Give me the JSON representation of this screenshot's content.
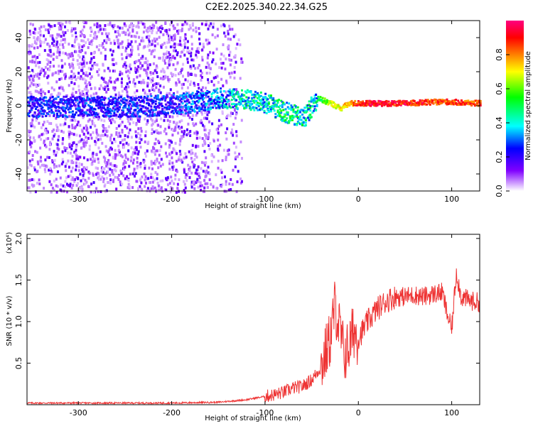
{
  "title": "C2E2.2025.340.22.34.G25",
  "chart_data": [
    {
      "type": "heatmap",
      "xlabel": "Height of straight line (km)",
      "ylabel": "Frequency (Hz)",
      "xlim": [
        -355,
        130
      ],
      "ylim": [
        -50,
        50
      ],
      "xticks": [
        -300,
        -200,
        -100,
        0,
        100
      ],
      "yticks": [
        -40,
        -20,
        0,
        20,
        40
      ],
      "colorbar": {
        "label": "Normalized spectral amplitude",
        "range": [
          0,
          1
        ],
        "ticks": [
          "0.0",
          "0.2",
          "0.4",
          "0.6",
          "0.8"
        ],
        "colors": [
          "#ffffff",
          "#8000ff",
          "#0000ff",
          "#00ffff",
          "#00ff00",
          "#ffff00",
          "#ff8000",
          "#ff0000",
          "#ff0080"
        ]
      },
      "series": [
        {
          "x": -340,
          "y": 0,
          "value": 0.3
        },
        {
          "x": -300,
          "y": 0,
          "value": 0.3
        },
        {
          "x": -250,
          "y": 0,
          "value": 0.3
        },
        {
          "x": -200,
          "y": 1,
          "value": 0.3
        },
        {
          "x": -150,
          "y": 5,
          "value": 0.4
        },
        {
          "x": -120,
          "y": 4,
          "value": 0.5
        },
        {
          "x": -100,
          "y": 2,
          "value": 0.5
        },
        {
          "x": -80,
          "y": -3,
          "value": 0.55
        },
        {
          "x": -60,
          "y": -7,
          "value": 0.5
        },
        {
          "x": -45,
          "y": 5,
          "value": 0.5
        },
        {
          "x": -30,
          "y": 2,
          "value": 0.7
        },
        {
          "x": -20,
          "y": -1,
          "value": 0.75
        },
        {
          "x": -10,
          "y": 2,
          "value": 0.8
        },
        {
          "x": 0,
          "y": 2,
          "value": 0.95
        },
        {
          "x": 50,
          "y": 2,
          "value": 0.95
        },
        {
          "x": 90,
          "y": 3,
          "value": 0.9
        },
        {
          "x": 130,
          "y": 2,
          "value": 0.9
        }
      ]
    },
    {
      "type": "line",
      "xlabel": "Height of straight line (km)",
      "ylabel": "SNR (10 * v/v)",
      "scale_label": "(x10⁴)",
      "xlim": [
        -355,
        130
      ],
      "ylim": [
        0,
        2.05
      ],
      "xticks": [
        -300,
        -200,
        -100,
        0,
        100
      ],
      "yticks": [
        "0.5",
        "1.0",
        "1.5",
        "2.0"
      ],
      "color": "#ee3333",
      "x": [
        -355,
        -300,
        -200,
        -150,
        -120,
        -100,
        -90,
        -80,
        -70,
        -60,
        -50,
        -40,
        -30,
        -25,
        -20,
        -15,
        -10,
        -5,
        0,
        10,
        20,
        30,
        40,
        50,
        60,
        70,
        80,
        90,
        95,
        100,
        105,
        110,
        120,
        130
      ],
      "y": [
        0.02,
        0.02,
        0.02,
        0.03,
        0.06,
        0.1,
        0.12,
        0.15,
        0.2,
        0.22,
        0.3,
        0.45,
        0.8,
        1.2,
        0.9,
        0.6,
        0.7,
        0.9,
        0.8,
        1.0,
        1.15,
        1.25,
        1.3,
        1.3,
        1.32,
        1.3,
        1.33,
        1.35,
        1.1,
        0.9,
        1.6,
        1.3,
        1.25,
        1.23
      ]
    }
  ]
}
